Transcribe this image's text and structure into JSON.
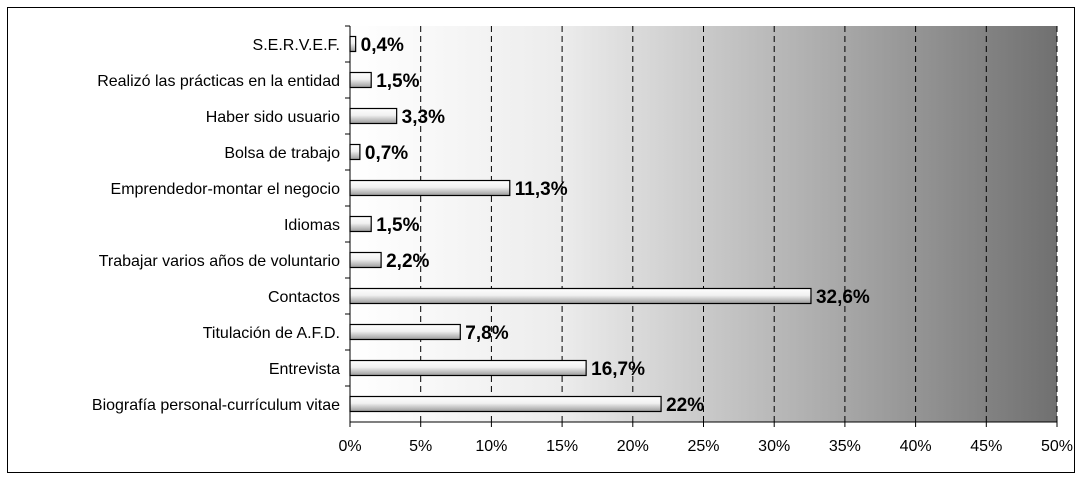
{
  "chart_data": {
    "type": "bar",
    "orientation": "horizontal",
    "categories": [
      "S.E.R.V.E.F.",
      "Realizó las prácticas en la entidad",
      "Haber sido usuario",
      "Bolsa de trabajo",
      "Emprendedor-montar el negocio",
      "Idiomas",
      "Trabajar varios años de voluntario",
      "Contactos",
      "Titulación de A.F.D.",
      "Entrevista",
      "Biografía personal-currículum vitae"
    ],
    "values": [
      0.4,
      1.5,
      3.3,
      0.7,
      11.3,
      1.5,
      2.2,
      32.6,
      7.8,
      16.7,
      22
    ],
    "value_labels": [
      "0,4%",
      "1,5%",
      "3,3%",
      "0,7%",
      "11,3%",
      "1,5%",
      "2,2%",
      "32,6%",
      "7,8%",
      "16,7%",
      "22%"
    ],
    "xlim": [
      0,
      50
    ],
    "x_ticks": [
      0,
      5,
      10,
      15,
      20,
      25,
      30,
      35,
      40,
      45,
      50
    ],
    "x_tick_labels": [
      "0%",
      "5%",
      "10%",
      "15%",
      "20%",
      "25%",
      "30%",
      "35%",
      "40%",
      "45%",
      "50%"
    ],
    "grid": "vertical-dashed",
    "background": "gradient white to dark gray",
    "bar_color": "#e8e8e8",
    "title": "",
    "xlabel": "",
    "ylabel": ""
  }
}
